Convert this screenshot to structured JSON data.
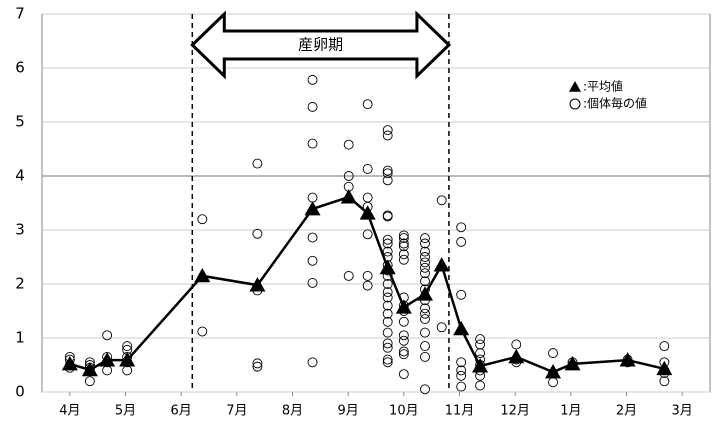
{
  "chart_data": {
    "type": "line",
    "xlim": [
      -0.5,
      11.5
    ],
    "xticks": [
      {
        "value": 0,
        "label": "4月"
      },
      {
        "value": 1,
        "label": "5月"
      },
      {
        "value": 2,
        "label": "6月"
      },
      {
        "value": 3,
        "label": "7月"
      },
      {
        "value": 4,
        "label": "8月"
      },
      {
        "value": 5,
        "label": "9月"
      },
      {
        "value": 6,
        "label": "10月"
      },
      {
        "value": 7,
        "label": "11月"
      },
      {
        "value": 8,
        "label": "12月"
      },
      {
        "value": 9,
        "label": "1月"
      },
      {
        "value": 10,
        "label": "2月"
      },
      {
        "value": 11,
        "label": "3月"
      }
    ],
    "ylim": [
      0,
      7
    ],
    "yticks": [
      0,
      1,
      2,
      3,
      4,
      5,
      6,
      7
    ],
    "grid": true,
    "legend": "upper right",
    "annotation": {
      "label": "産卵期",
      "start": 2.2,
      "end": 6.81
    },
    "series": [
      {
        "name": ":平均値",
        "type": "line",
        "marker": "triangle",
        "color": "#000000",
        "x": [
          0,
          0.36,
          0.67,
          1.03,
          2.38,
          3.37,
          4.36,
          5.01,
          5.35,
          5.71,
          6.0,
          6.38,
          6.68,
          7.03,
          7.37,
          8.02,
          8.68,
          9.03,
          10.02,
          10.68
        ],
        "values": [
          0.52,
          0.41,
          0.59,
          0.59,
          2.15,
          1.98,
          3.39,
          3.61,
          3.31,
          2.3,
          1.57,
          1.81,
          2.35,
          1.17,
          0.48,
          0.65,
          0.37,
          0.52,
          0.59,
          0.43
        ]
      },
      {
        "name": ":個体毎の値",
        "type": "scatter",
        "marker": "circle",
        "color": "#000000",
        "x": [
          0,
          0,
          0,
          0,
          0.36,
          0.36,
          0.36,
          0.36,
          0.36,
          0.67,
          0.67,
          0.67,
          0.67,
          1.03,
          1.03,
          1.03,
          1.03,
          1.03,
          2.38,
          2.38,
          3.37,
          3.37,
          3.37,
          3.37,
          3.37,
          4.36,
          4.36,
          4.36,
          4.36,
          4.36,
          4.36,
          4.36,
          4.36,
          5.01,
          5.01,
          5.01,
          5.01,
          5.35,
          5.35,
          5.35,
          5.35,
          5.35,
          5.35,
          5.35,
          5.71,
          5.71,
          5.71,
          5.71,
          5.71,
          5.71,
          5.71,
          5.71,
          5.71,
          5.71,
          5.71,
          5.71,
          5.71,
          5.71,
          5.71,
          5.71,
          5.71,
          5.71,
          5.71,
          5.71,
          5.71,
          5.71,
          5.71,
          5.71,
          5.71,
          6.0,
          6.0,
          6.0,
          6.0,
          6.0,
          6.0,
          6.0,
          6.0,
          6.0,
          6.0,
          6.0,
          6.0,
          6.0,
          6.0,
          6.0,
          6.38,
          6.38,
          6.38,
          6.38,
          6.38,
          6.38,
          6.38,
          6.38,
          6.38,
          6.38,
          6.38,
          6.38,
          6.38,
          6.38,
          6.38,
          6.38,
          6.38,
          6.68,
          6.68,
          7.03,
          7.03,
          7.03,
          7.03,
          7.03,
          7.03,
          7.03,
          7.37,
          7.37,
          7.37,
          7.37,
          7.37,
          7.37,
          7.37,
          7.37,
          8.02,
          8.02,
          8.02,
          8.68,
          8.68,
          8.68,
          9.03,
          9.03,
          10.02,
          10.02,
          10.68,
          10.68,
          10.68,
          10.68,
          10.68
        ],
        "values": [
          0.65,
          0.6,
          0.5,
          0.45,
          0.55,
          0.5,
          0.45,
          0.4,
          0.2,
          1.05,
          0.65,
          0.55,
          0.4,
          0.85,
          0.78,
          0.65,
          0.55,
          0.4,
          3.2,
          1.12,
          4.23,
          2.93,
          1.88,
          0.53,
          0.47,
          5.78,
          5.28,
          4.6,
          3.6,
          2.86,
          2.43,
          2.02,
          0.55,
          4.58,
          4.0,
          3.8,
          2.15,
          5.33,
          4.13,
          3.6,
          3.43,
          2.92,
          2.15,
          1.97,
          4.85,
          4.75,
          4.1,
          4.05,
          3.92,
          3.27,
          3.25,
          2.82,
          2.75,
          2.6,
          2.5,
          2.35,
          2.25,
          2.15,
          2.0,
          1.85,
          1.75,
          1.6,
          1.45,
          1.3,
          1.1,
          0.9,
          0.82,
          0.6,
          0.55,
          2.9,
          2.85,
          2.75,
          2.7,
          2.55,
          2.45,
          1.75,
          1.6,
          1.5,
          1.3,
          1.05,
          0.95,
          0.75,
          0.7,
          0.33,
          2.85,
          2.75,
          2.6,
          2.5,
          2.4,
          2.3,
          2.2,
          2.05,
          1.9,
          1.7,
          1.55,
          1.45,
          1.35,
          1.1,
          0.85,
          0.65,
          0.05,
          3.55,
          1.2,
          3.05,
          2.78,
          1.8,
          0.55,
          0.4,
          0.3,
          0.1,
          0.98,
          0.88,
          0.72,
          0.6,
          0.5,
          0.4,
          0.3,
          0.12,
          0.88,
          0.6,
          0.55,
          0.72,
          0.35,
          0.18,
          0.55,
          0.5,
          0.6,
          0.55,
          0.85,
          0.55,
          0.4,
          0.35,
          0.2
        ]
      }
    ]
  }
}
